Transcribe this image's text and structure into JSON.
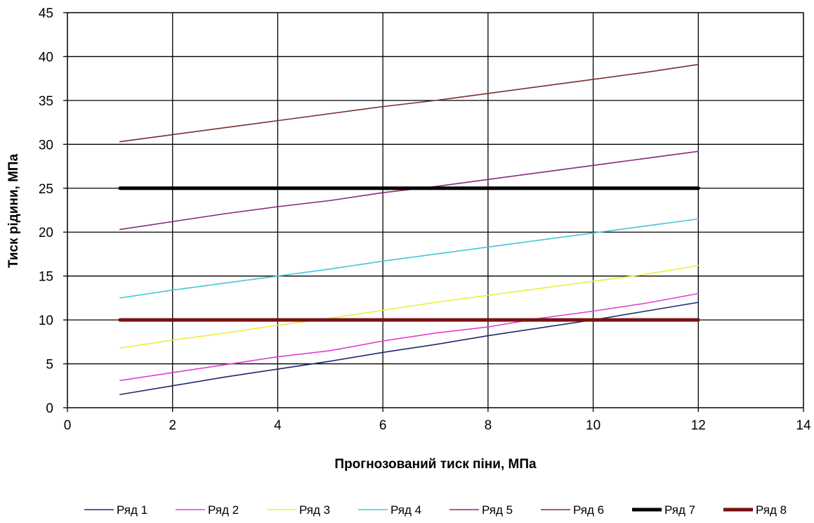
{
  "chart_data": {
    "type": "line",
    "title": "",
    "xlabel": "Прогнозований тиск піни, МПа",
    "ylabel": "Тиск рідини, МПа",
    "xlim": [
      0,
      14
    ],
    "ylim": [
      0,
      45
    ],
    "x_ticks": [
      "0",
      "2",
      "4",
      "6",
      "8",
      "10",
      "12",
      "14"
    ],
    "y_ticks": [
      "0",
      "5",
      "10",
      "15",
      "20",
      "25",
      "30",
      "35",
      "40",
      "45"
    ],
    "grid": true,
    "legend_position": "bottom",
    "x": [
      1,
      2,
      3,
      4,
      5,
      6,
      7,
      8,
      9,
      10,
      11,
      12
    ],
    "series": [
      {
        "name": "Ряд 1",
        "color": "#1f2a6b",
        "values": [
          1.5,
          2.5,
          3.5,
          4.4,
          5.3,
          6.3,
          7.2,
          8.2,
          9.1,
          10.0,
          11.0,
          12.0
        ]
      },
      {
        "name": "Ряд 2",
        "color": "#e040d0",
        "values": [
          3.1,
          4.0,
          4.9,
          5.8,
          6.5,
          7.6,
          8.5,
          9.2,
          10.2,
          11.0,
          11.9,
          13.0
        ]
      },
      {
        "name": "Ряд 3",
        "color": "#ecec40",
        "values": [
          6.8,
          7.7,
          8.5,
          9.4,
          10.2,
          11.1,
          12.0,
          12.8,
          13.6,
          14.4,
          15.2,
          16.2
        ]
      },
      {
        "name": "Ряд 4",
        "color": "#40c8d8",
        "values": [
          12.5,
          13.4,
          14.2,
          15.0,
          15.8,
          16.7,
          17.5,
          18.3,
          19.1,
          19.9,
          20.7,
          21.5
        ]
      },
      {
        "name": "Ряд 5",
        "color": "#8a2a7a",
        "values": [
          20.3,
          21.2,
          22.1,
          22.9,
          23.6,
          24.5,
          25.2,
          26.0,
          26.8,
          27.6,
          28.4,
          29.2
        ]
      },
      {
        "name": "Ряд 6",
        "color": "#7a2e2e",
        "values": [
          30.3,
          31.1,
          31.9,
          32.7,
          33.5,
          34.3,
          35.0,
          35.8,
          36.6,
          37.4,
          38.2,
          39.1
        ]
      },
      {
        "name": "Ряд 7",
        "color": "#000000",
        "values": [
          25,
          25,
          25,
          25,
          25,
          25,
          25,
          25,
          25,
          25,
          25,
          25
        ]
      },
      {
        "name": "Ряд 8",
        "color": "#7a1010",
        "values": [
          10,
          10,
          10,
          10,
          10,
          10,
          10,
          10,
          10,
          10,
          10,
          10
        ]
      }
    ]
  }
}
